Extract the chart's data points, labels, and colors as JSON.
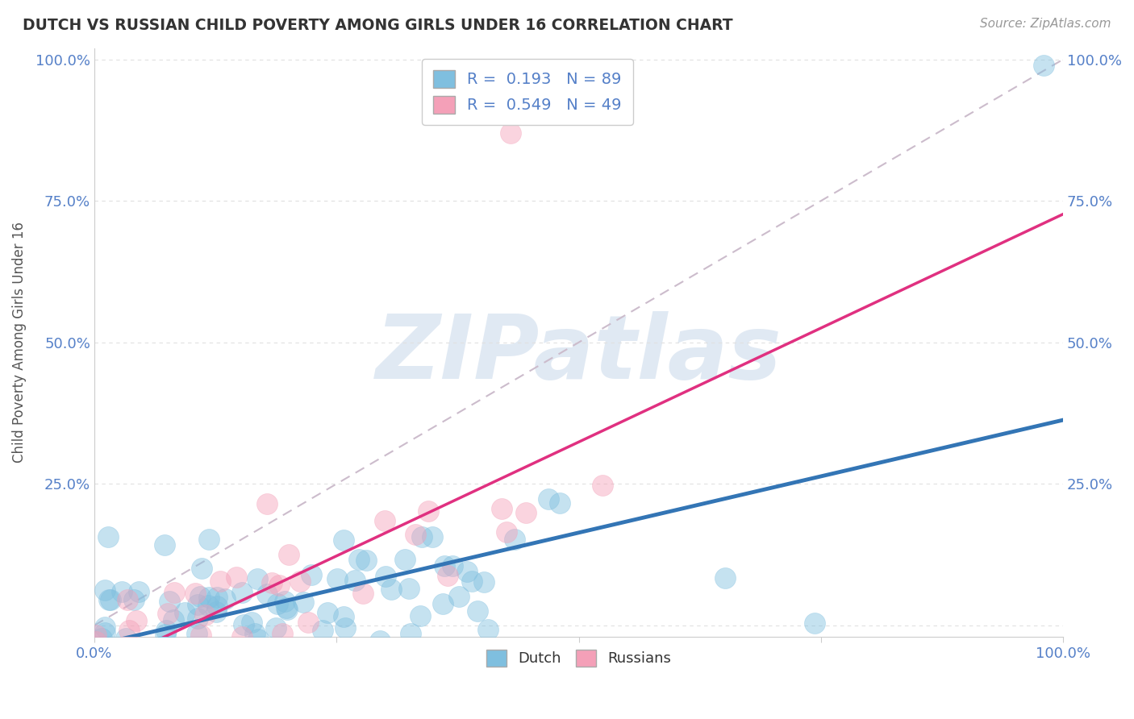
{
  "title": "DUTCH VS RUSSIAN CHILD POVERTY AMONG GIRLS UNDER 16 CORRELATION CHART",
  "source": "Source: ZipAtlas.com",
  "ylabel": "Child Poverty Among Girls Under 16",
  "watermark": "ZIPatlas",
  "dutch_R": 0.193,
  "dutch_N": 89,
  "russian_R": 0.549,
  "russian_N": 49,
  "dutch_color": "#7fbfdf",
  "russian_color": "#f4a0b8",
  "dutch_line_color": "#3375b5",
  "russian_line_color": "#e03080",
  "diag_color": "#c8b8c8",
  "background_color": "#ffffff",
  "tick_color": "#5580c8",
  "ylabel_color": "#555555",
  "title_color": "#333333",
  "source_color": "#999999",
  "grid_color": "#e0e0e0"
}
